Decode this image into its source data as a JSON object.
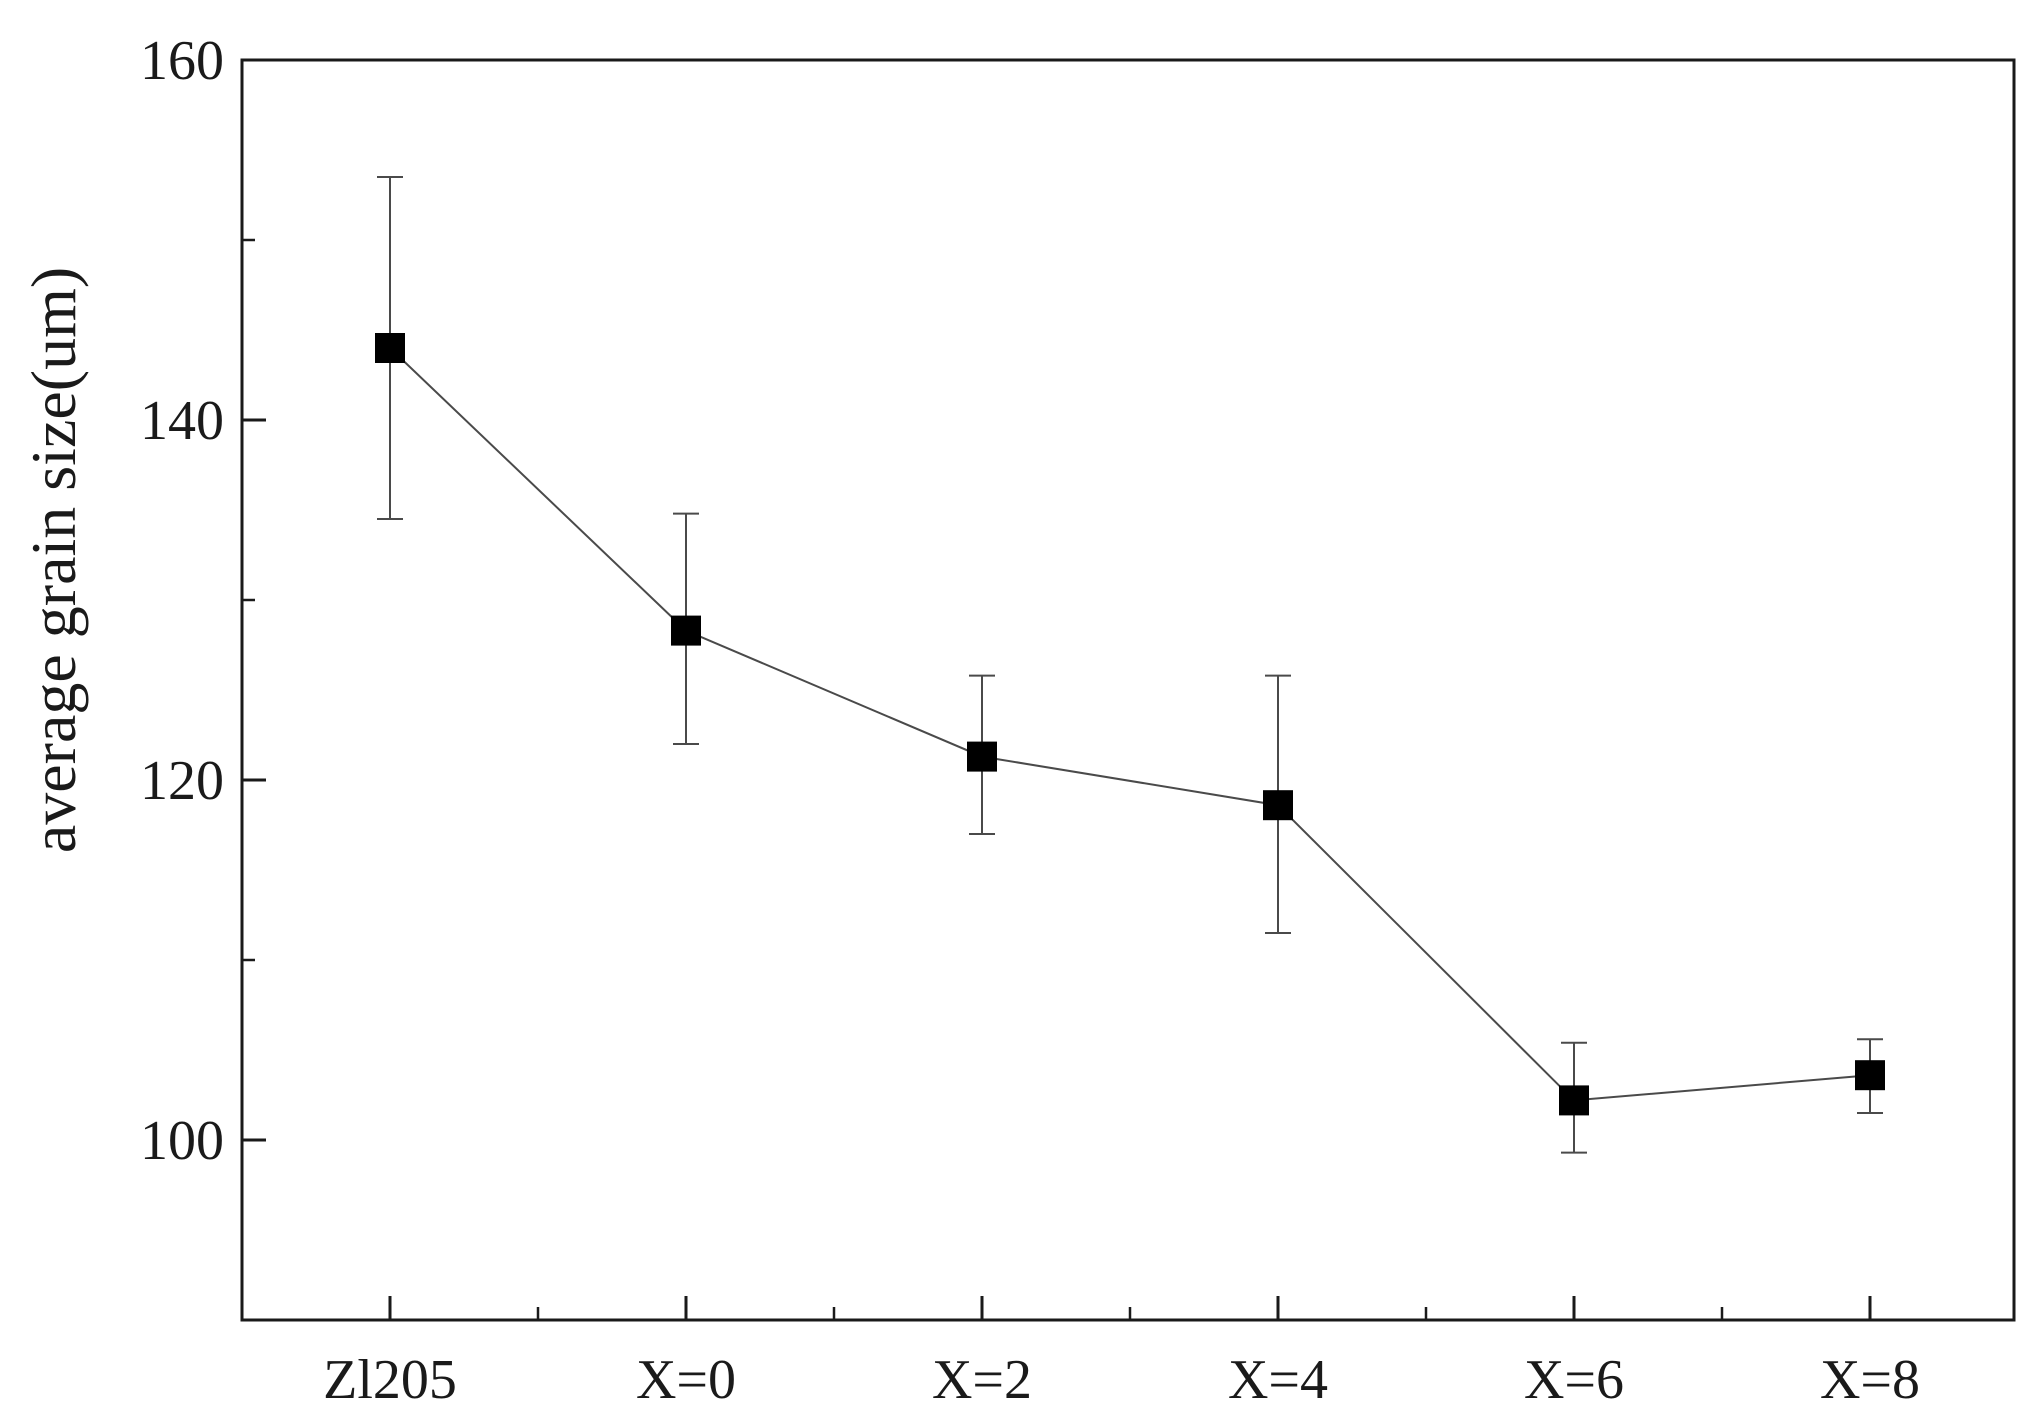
{
  "chart_data": {
    "type": "line",
    "title": "",
    "xlabel": "",
    "ylabel": "average grain size(um)",
    "categories": [
      "Zl205",
      "X=0",
      "X=2",
      "X=4",
      "X=6",
      "X=8"
    ],
    "series": [
      {
        "values": [
          144.0,
          128.3,
          121.3,
          118.6,
          102.2,
          103.6
        ],
        "error_low": [
          134.5,
          122.0,
          117.0,
          111.5,
          99.3,
          101.5
        ],
        "error_high": [
          153.5,
          134.8,
          125.8,
          125.8,
          105.4,
          105.6
        ],
        "marker": "square",
        "color": "#000000"
      }
    ],
    "ylim": [
      90,
      160
    ],
    "yticks": [
      100,
      120,
      140,
      160
    ],
    "y_minor_ticks": [
      110,
      130,
      150
    ],
    "grid": false,
    "legend": "none",
    "colors": {
      "line": "#4a4a4a",
      "marker": "#000000",
      "errorbar": "#4a4a4a",
      "frame": "#1a1a1a"
    }
  }
}
